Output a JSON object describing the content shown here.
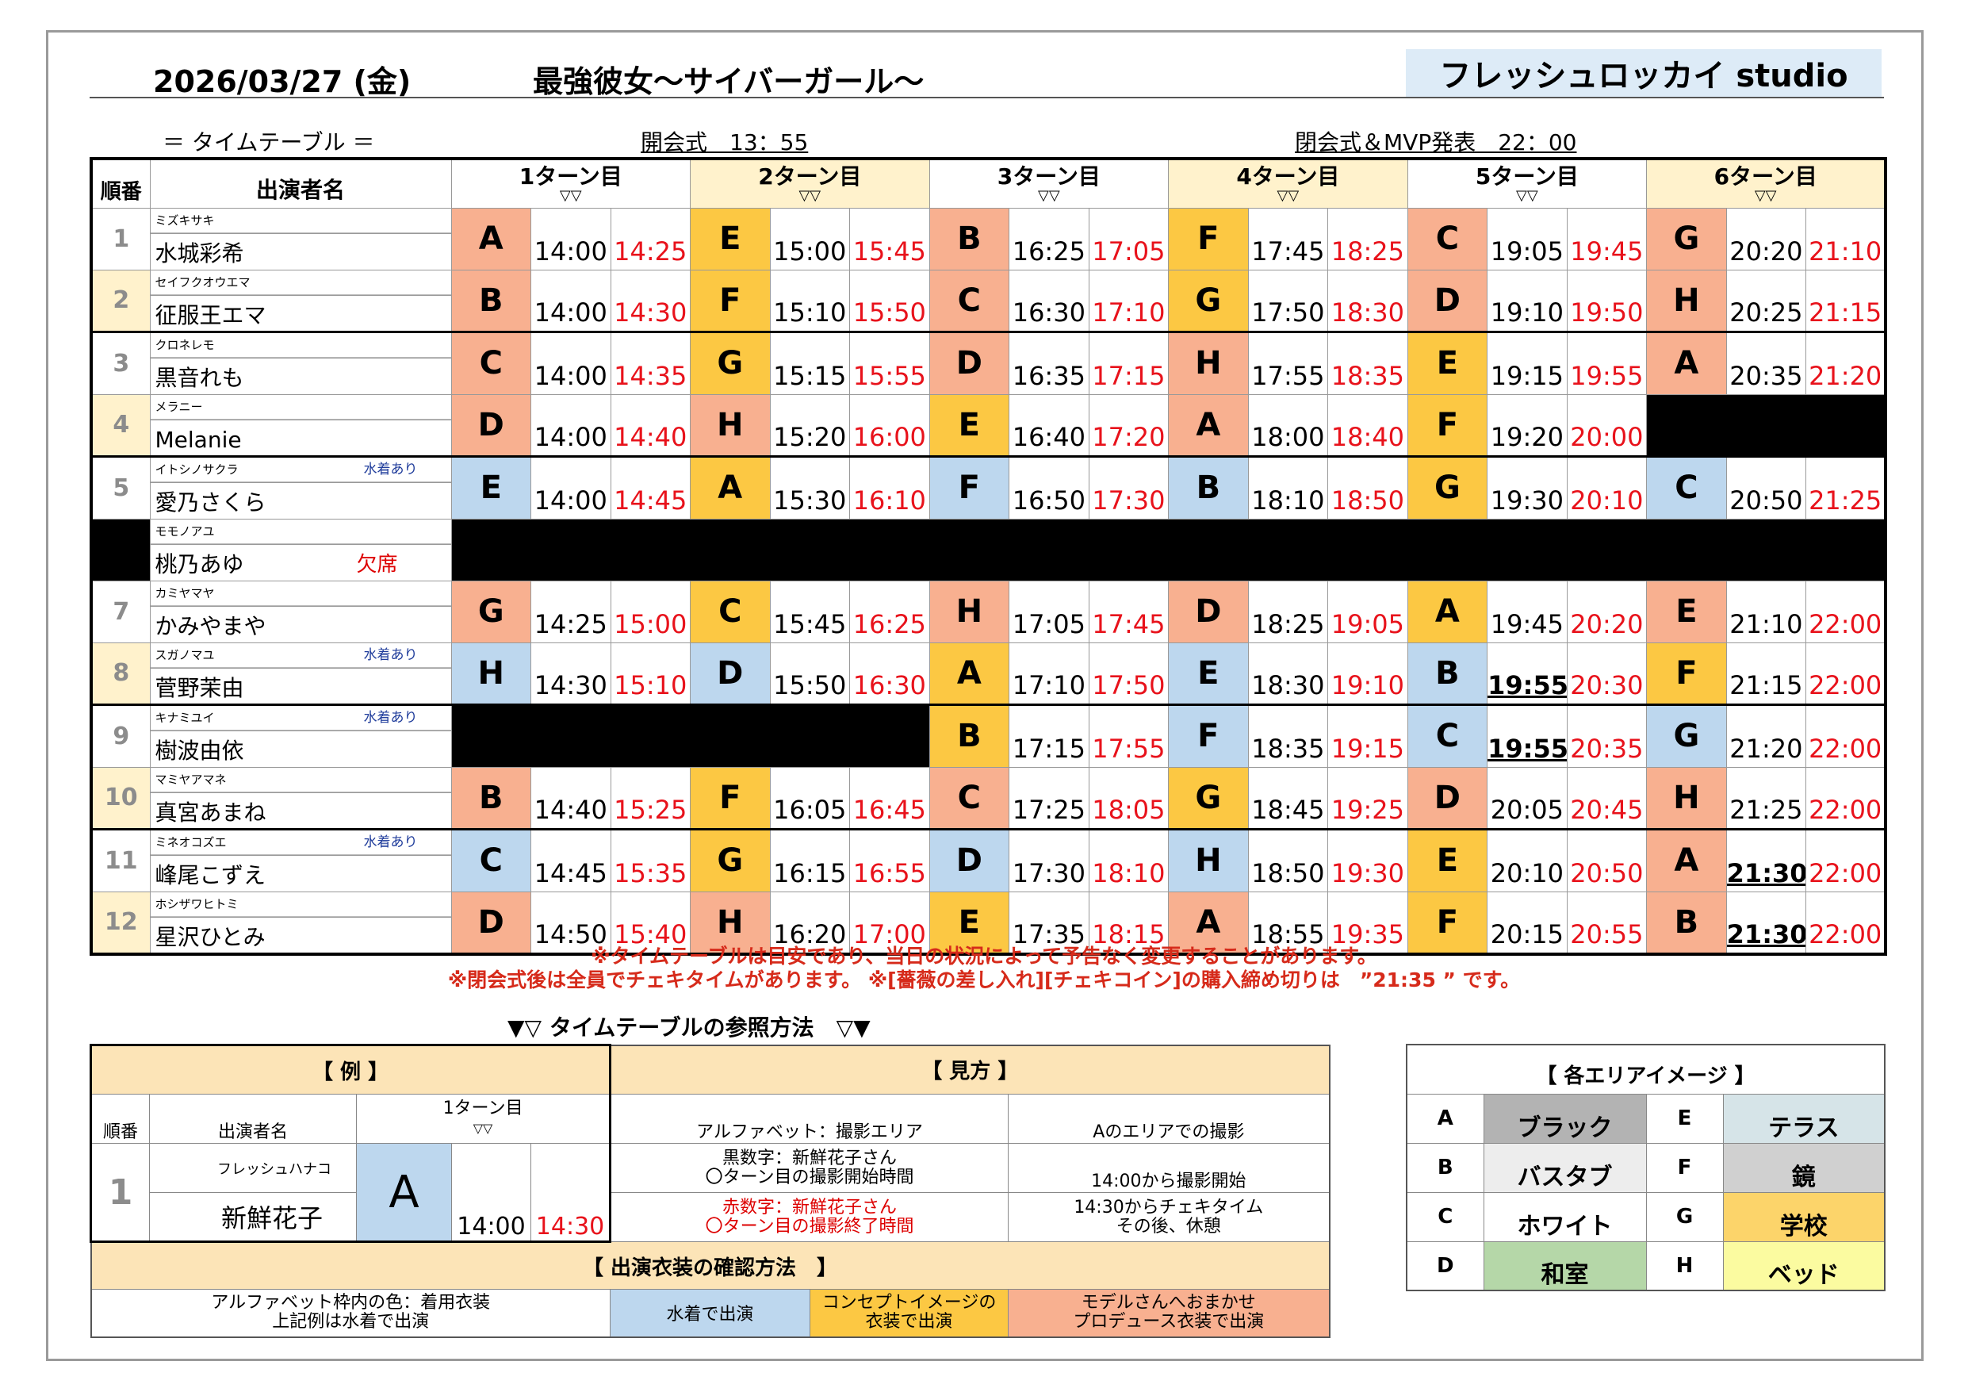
{
  "header": {
    "date": "2026/03/27 (金)",
    "event_title": "最強彼女～サイバーガール～",
    "studio": "フレッシュロッカイ studio"
  },
  "subheader": {
    "timetable_label": "＝ タイムテーブル ＝",
    "opening": "開会式　13：55",
    "closing": "閉会式＆MVP発表　22：00"
  },
  "table_head": {
    "order": "順番",
    "performer": "出演者名",
    "turns": [
      "1ターン目",
      "2ターン目",
      "3ターン目",
      "4ターン目",
      "5ターン目",
      "6ターン目"
    ],
    "arrows": "▽▽"
  },
  "rows": [
    {
      "num": "1",
      "kana": "ミズキサキ",
      "name": "水城彩希",
      "note": "",
      "absent": "",
      "turns": [
        {
          "letter": "A",
          "start": "14:00",
          "end": "14:25",
          "color": "#f8b090"
        },
        {
          "letter": "E",
          "start": "15:00",
          "end": "15:45",
          "color": "#fcc843"
        },
        {
          "letter": "B",
          "start": "16:25",
          "end": "17:05",
          "color": "#f8b090"
        },
        {
          "letter": "F",
          "start": "17:45",
          "end": "18:25",
          "color": "#fcc843"
        },
        {
          "letter": "C",
          "start": "19:05",
          "end": "19:45",
          "color": "#f8b090"
        },
        {
          "letter": "G",
          "start": "20:20",
          "end": "21:10",
          "color": "#f8b090"
        }
      ]
    },
    {
      "num": "2",
      "kana": "セイフクオウエマ",
      "name": "征服王エマ",
      "note": "",
      "absent": "",
      "turns": [
        {
          "letter": "B",
          "start": "14:00",
          "end": "14:30",
          "color": "#f8b090"
        },
        {
          "letter": "F",
          "start": "15:10",
          "end": "15:50",
          "color": "#fcc843"
        },
        {
          "letter": "C",
          "start": "16:30",
          "end": "17:10",
          "color": "#f8b090"
        },
        {
          "letter": "G",
          "start": "17:50",
          "end": "18:30",
          "color": "#fcc843"
        },
        {
          "letter": "D",
          "start": "19:10",
          "end": "19:50",
          "color": "#f8b090"
        },
        {
          "letter": "H",
          "start": "20:25",
          "end": "21:15",
          "color": "#f8b090"
        }
      ]
    },
    {
      "num": "3",
      "kana": "クロネレモ",
      "name": "黒音れも",
      "note": "",
      "absent": "",
      "turns": [
        {
          "letter": "C",
          "start": "14:00",
          "end": "14:35",
          "color": "#f8b090"
        },
        {
          "letter": "G",
          "start": "15:15",
          "end": "15:55",
          "color": "#fcc843"
        },
        {
          "letter": "D",
          "start": "16:35",
          "end": "17:15",
          "color": "#f8b090"
        },
        {
          "letter": "H",
          "start": "17:55",
          "end": "18:35",
          "color": "#f8b090"
        },
        {
          "letter": "E",
          "start": "19:15",
          "end": "19:55",
          "color": "#fcc843"
        },
        {
          "letter": "A",
          "start": "20:35",
          "end": "21:20",
          "color": "#f8b090"
        }
      ]
    },
    {
      "num": "4",
      "kana": "メラニー",
      "name": "Melanie",
      "note": "",
      "absent": "",
      "turns": [
        {
          "letter": "D",
          "start": "14:00",
          "end": "14:40",
          "color": "#f8b090"
        },
        {
          "letter": "H",
          "start": "15:20",
          "end": "16:00",
          "color": "#f8b090"
        },
        {
          "letter": "E",
          "start": "16:40",
          "end": "17:20",
          "color": "#fcc843"
        },
        {
          "letter": "A",
          "start": "18:00",
          "end": "18:40",
          "color": "#f8b090"
        },
        {
          "letter": "F",
          "start": "19:20",
          "end": "20:00",
          "color": "#fcc843"
        },
        null
      ]
    },
    {
      "num": "5",
      "kana": "イトシノサクラ",
      "name": "愛乃さくら",
      "note": "水着あり",
      "absent": "",
      "turns": [
        {
          "letter": "E",
          "start": "14:00",
          "end": "14:45",
          "color": "#bdd7ee"
        },
        {
          "letter": "A",
          "start": "15:30",
          "end": "16:10",
          "color": "#fcc843"
        },
        {
          "letter": "F",
          "start": "16:50",
          "end": "17:30",
          "color": "#bdd7ee"
        },
        {
          "letter": "B",
          "start": "18:10",
          "end": "18:50",
          "color": "#bdd7ee"
        },
        {
          "letter": "G",
          "start": "19:30",
          "end": "20:10",
          "color": "#fcc843"
        },
        {
          "letter": "C",
          "start": "20:50",
          "end": "21:25",
          "color": "#bdd7ee"
        }
      ]
    },
    {
      "num": "",
      "kana": "モモノアユ",
      "name": "桃乃あゆ",
      "note": "",
      "absent": "欠席",
      "turns": [
        null,
        null,
        null,
        null,
        null,
        null
      ]
    },
    {
      "num": "7",
      "kana": "カミヤマヤ",
      "name": "かみやまや",
      "note": "",
      "absent": "",
      "turns": [
        {
          "letter": "G",
          "start": "14:25",
          "end": "15:00",
          "color": "#f8b090"
        },
        {
          "letter": "C",
          "start": "15:45",
          "end": "16:25",
          "color": "#fcc843"
        },
        {
          "letter": "H",
          "start": "17:05",
          "end": "17:45",
          "color": "#f8b090"
        },
        {
          "letter": "D",
          "start": "18:25",
          "end": "19:05",
          "color": "#f8b090"
        },
        {
          "letter": "A",
          "start": "19:45",
          "end": "20:20",
          "color": "#fcc843"
        },
        {
          "letter": "E",
          "start": "21:10",
          "end": "22:00",
          "color": "#f8b090"
        }
      ]
    },
    {
      "num": "8",
      "kana": "スガノマユ",
      "name": "菅野茉由",
      "note": "水着あり",
      "absent": "",
      "turns": [
        {
          "letter": "H",
          "start": "14:30",
          "end": "15:10",
          "color": "#bdd7ee"
        },
        {
          "letter": "D",
          "start": "15:50",
          "end": "16:30",
          "color": "#bdd7ee"
        },
        {
          "letter": "A",
          "start": "17:10",
          "end": "17:50",
          "color": "#fcc843"
        },
        {
          "letter": "E",
          "start": "18:30",
          "end": "19:10",
          "color": "#bdd7ee"
        },
        {
          "letter": "B",
          "start": "19:55",
          "end": "20:30",
          "color": "#bdd7ee",
          "bold": true
        },
        {
          "letter": "F",
          "start": "21:15",
          "end": "22:00",
          "color": "#fcc843"
        }
      ]
    },
    {
      "num": "9",
      "kana": "キナミユイ",
      "name": "樹波由依",
      "note": "水着あり",
      "absent": "",
      "turns": [
        null,
        null,
        {
          "letter": "B",
          "start": "17:15",
          "end": "17:55",
          "color": "#fcc843"
        },
        {
          "letter": "F",
          "start": "18:35",
          "end": "19:15",
          "color": "#bdd7ee"
        },
        {
          "letter": "C",
          "start": "19:55",
          "end": "20:35",
          "color": "#bdd7ee",
          "bold": true
        },
        {
          "letter": "G",
          "start": "21:20",
          "end": "22:00",
          "color": "#bdd7ee"
        }
      ]
    },
    {
      "num": "10",
      "kana": "マミヤアマネ",
      "name": "真宮あまね",
      "note": "",
      "absent": "",
      "turns": [
        {
          "letter": "B",
          "start": "14:40",
          "end": "15:25",
          "color": "#f8b090"
        },
        {
          "letter": "F",
          "start": "16:05",
          "end": "16:45",
          "color": "#fcc843"
        },
        {
          "letter": "C",
          "start": "17:25",
          "end": "18:05",
          "color": "#f8b090"
        },
        {
          "letter": "G",
          "start": "18:45",
          "end": "19:25",
          "color": "#fcc843"
        },
        {
          "letter": "D",
          "start": "20:05",
          "end": "20:45",
          "color": "#f8b090"
        },
        {
          "letter": "H",
          "start": "21:25",
          "end": "22:00",
          "color": "#f8b090"
        }
      ]
    },
    {
      "num": "11",
      "kana": "ミネオコズエ",
      "name": "峰尾こずえ",
      "note": "水着あり",
      "absent": "",
      "turns": [
        {
          "letter": "C",
          "start": "14:45",
          "end": "15:35",
          "color": "#bdd7ee"
        },
        {
          "letter": "G",
          "start": "16:15",
          "end": "16:55",
          "color": "#fcc843"
        },
        {
          "letter": "D",
          "start": "17:30",
          "end": "18:10",
          "color": "#bdd7ee"
        },
        {
          "letter": "H",
          "start": "18:50",
          "end": "19:30",
          "color": "#bdd7ee"
        },
        {
          "letter": "E",
          "start": "20:10",
          "end": "20:50",
          "color": "#fcc843"
        },
        {
          "letter": "A",
          "start": "21:30",
          "end": "22:00",
          "color": "#f8b090",
          "bold": true
        }
      ]
    },
    {
      "num": "12",
      "kana": "ホシザワヒトミ",
      "name": "星沢ひとみ",
      "note": "",
      "absent": "",
      "turns": [
        {
          "letter": "D",
          "start": "14:50",
          "end": "15:40",
          "color": "#f8b090"
        },
        {
          "letter": "H",
          "start": "16:20",
          "end": "17:00",
          "color": "#f8b090"
        },
        {
          "letter": "E",
          "start": "17:35",
          "end": "18:15",
          "color": "#fcc843"
        },
        {
          "letter": "A",
          "start": "18:55",
          "end": "19:35",
          "color": "#f8b090"
        },
        {
          "letter": "F",
          "start": "20:15",
          "end": "20:55",
          "color": "#fcc843"
        },
        {
          "letter": "B",
          "start": "21:30",
          "end": "22:00",
          "color": "#f8b090",
          "bold": true
        }
      ]
    }
  ],
  "notes": {
    "line1": "※タイムテーブルは目安であり、当日の状況によって予告なく変更することがあります。",
    "line2": "※閉会式後は全員でチェキタイムがあります。 ※[薔薇の差し入れ][チェキコイン]の購入締め切りは　”21:35 ” です。"
  },
  "howto": {
    "title": "▼▽ タイムテーブルの参照方法　▽▼",
    "example_label": "【 例 】",
    "view_label": "【 見方 】",
    "order": "順番",
    "performer": "出演者名",
    "turn": "1ターン目",
    "arrows": "▽▽",
    "ex_kana": "フレッシュハナコ",
    "ex_num": "1",
    "ex_name": "新鮮花子",
    "ex_letter": "A",
    "ex_start": "14:00",
    "ex_end": "14:30",
    "v1a": "アルファベット：撮影エリア",
    "v1b": "Aのエリアでの撮影",
    "v2a1": "黒数字：新鮮花子さん",
    "v2a2": "〇ターン目の撮影開始時間",
    "v2b": "14:00から撮影開始",
    "v3a1": "赤数字：新鮮花子さん",
    "v3a2": "〇ターン目の撮影終了時間",
    "v3b1": "14:30からチェキタイム",
    "v3b2": "その後、休憩",
    "costume_title": "【 出演衣装の確認方法　】",
    "c1a": "アルファベット枠内の色：着用衣装",
    "c1b": "上記例は水着で出演",
    "c2": "水着で出演",
    "c3a": "コンセプトイメージの",
    "c3b": "衣装で出演",
    "c4a": "モデルさんへおまかせ",
    "c4b": "プロデュース衣装で出演"
  },
  "areas": {
    "title": "【 各エリアイメージ 】",
    "items": [
      {
        "l": "A",
        "n": "ブラック",
        "color": "#b3b3b3"
      },
      {
        "l": "E",
        "n": "テラス",
        "color": "#d6e4e8"
      },
      {
        "l": "B",
        "n": "バスタブ",
        "color": "#ededed"
      },
      {
        "l": "F",
        "n": "鏡",
        "color": "#d0d0d0"
      },
      {
        "l": "C",
        "n": "ホワイト",
        "color": "#ffffff"
      },
      {
        "l": "G",
        "n": "学校",
        "color": "#fcd46a"
      },
      {
        "l": "D",
        "n": "和室",
        "color": "#b5d7a8"
      },
      {
        "l": "H",
        "n": "ベッド",
        "color": "#fbfba0"
      }
    ]
  },
  "colors": {
    "blue": "#bdd7ee",
    "yellow": "#fcc843",
    "orange": "#f8b090",
    "red": "#e8121b",
    "header_yellow": "#fff2cc",
    "studio_bg": "#ddebf7"
  }
}
